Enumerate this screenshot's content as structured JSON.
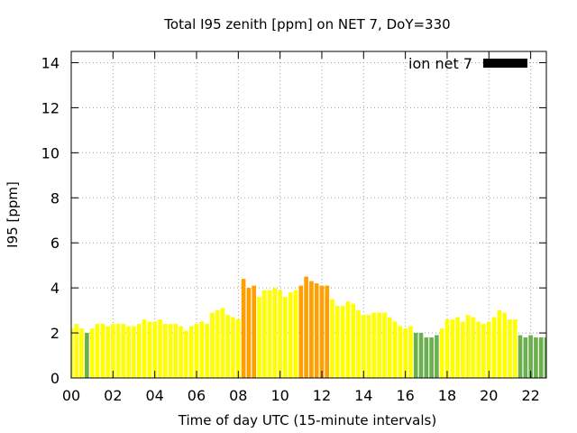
{
  "chart_data": {
    "type": "bar",
    "title": "Total I95 zenith [ppm] on NET 7, DoY=330",
    "xlabel": "Time of day UTC (15-minute intervals)",
    "ylabel": "I95 [ppm]",
    "xlim": [
      0,
      22.75
    ],
    "ylim": [
      0,
      14.5
    ],
    "yticks": [
      0,
      2,
      4,
      6,
      8,
      10,
      12,
      14
    ],
    "xticks": [
      "00",
      "02",
      "04",
      "06",
      "08",
      "10",
      "12",
      "14",
      "16",
      "18",
      "20",
      "22"
    ],
    "grid": true,
    "legend": {
      "label": "ion net 7",
      "position": "top-right",
      "color": "#000000"
    },
    "bar_interval_hours": 0.25,
    "bar_width_fraction": 0.8,
    "x_first": 0.0,
    "colors": {
      "low": "#6ab04c",
      "mid": "#ffff00",
      "high": "#ff9f00"
    },
    "values": [
      2.2,
      2.4,
      2.2,
      2.0,
      2.2,
      2.4,
      2.4,
      2.3,
      2.4,
      2.4,
      2.4,
      2.3,
      2.3,
      2.4,
      2.6,
      2.5,
      2.5,
      2.6,
      2.4,
      2.4,
      2.4,
      2.3,
      2.1,
      2.3,
      2.4,
      2.5,
      2.4,
      2.9,
      3.0,
      3.1,
      2.8,
      2.7,
      2.6,
      4.4,
      4.0,
      4.1,
      3.6,
      3.9,
      3.9,
      4.0,
      3.9,
      3.6,
      3.8,
      3.9,
      4.1,
      4.5,
      4.3,
      4.2,
      4.1,
      4.1,
      3.5,
      3.2,
      3.2,
      3.4,
      3.3,
      3.0,
      2.8,
      2.8,
      2.9,
      2.9,
      2.9,
      2.7,
      2.5,
      2.3,
      2.2,
      2.3,
      2.0,
      2.0,
      1.8,
      1.8,
      1.9,
      2.2,
      2.6,
      2.6,
      2.7,
      2.5,
      2.8,
      2.7,
      2.5,
      2.4,
      2.5,
      2.7,
      3.0,
      2.9,
      2.6,
      2.6,
      1.9,
      1.8,
      1.9,
      1.8,
      1.8,
      1.8
    ],
    "color_classes": [
      "mid",
      "mid",
      "mid",
      "low",
      "mid",
      "mid",
      "mid",
      "mid",
      "mid",
      "mid",
      "mid",
      "mid",
      "mid",
      "mid",
      "mid",
      "mid",
      "mid",
      "mid",
      "mid",
      "mid",
      "mid",
      "mid",
      "mid",
      "mid",
      "mid",
      "mid",
      "mid",
      "mid",
      "mid",
      "mid",
      "mid",
      "mid",
      "mid",
      "high",
      "high",
      "high",
      "mid",
      "mid",
      "mid",
      "mid",
      "mid",
      "mid",
      "mid",
      "mid",
      "high",
      "high",
      "high",
      "high",
      "high",
      "high",
      "mid",
      "mid",
      "mid",
      "mid",
      "mid",
      "mid",
      "mid",
      "mid",
      "mid",
      "mid",
      "mid",
      "mid",
      "mid",
      "mid",
      "mid",
      "mid",
      "low",
      "low",
      "low",
      "low",
      "low",
      "mid",
      "mid",
      "mid",
      "mid",
      "mid",
      "mid",
      "mid",
      "mid",
      "mid",
      "mid",
      "mid",
      "mid",
      "mid",
      "mid",
      "mid",
      "low",
      "low",
      "low",
      "low",
      "low",
      "low"
    ]
  }
}
